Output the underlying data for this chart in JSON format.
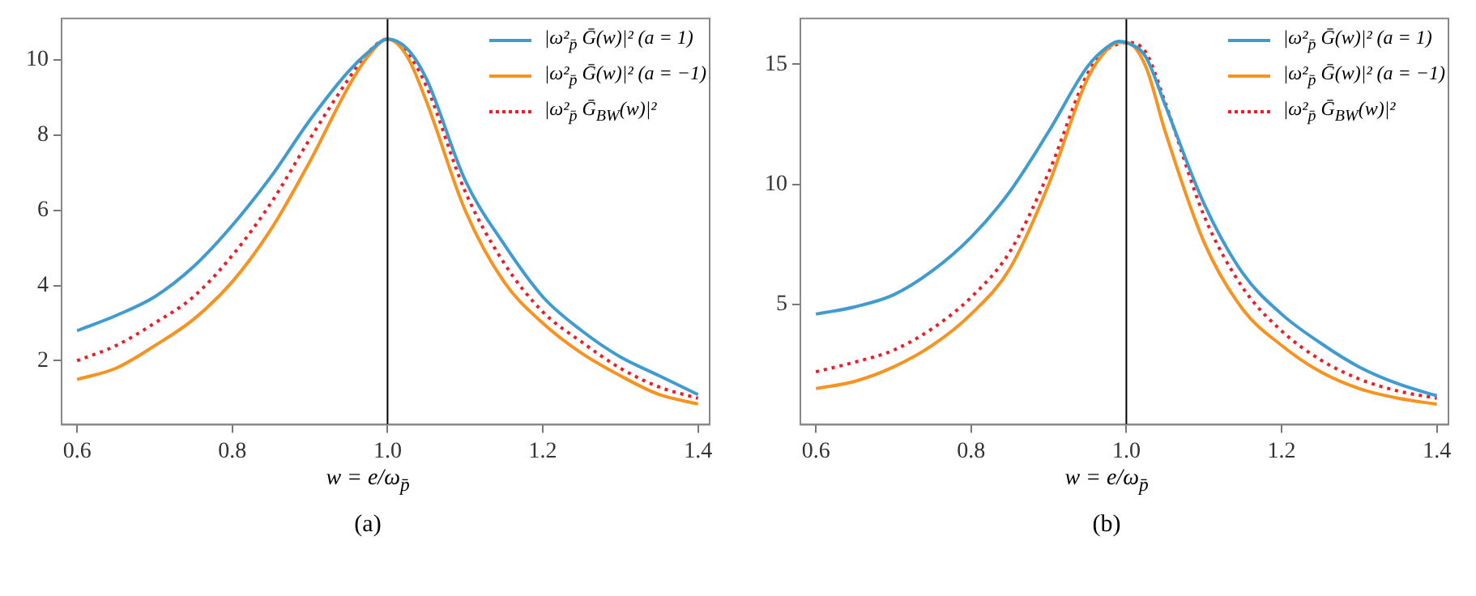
{
  "chart_data": [
    {
      "type": "line",
      "title": "(a)",
      "xlabel": "w = e/ω$_{p̄}$",
      "legend": "top right",
      "grid": false,
      "marker": "none",
      "xlim": [
        0.58,
        1.415
      ],
      "xticks": [
        0.6,
        0.8,
        {
          "value": 1,
          "label": "1.0"
        },
        1.2,
        1.4
      ],
      "ylim": [
        0.3,
        11.1
      ],
      "yticks": [
        2,
        4,
        6,
        8,
        10
      ],
      "ref_lines": [
        {
          "axis": "x",
          "value": 1,
          "color": "#000000"
        }
      ],
      "x": [
        0.6,
        0.65,
        0.7,
        0.75,
        0.8,
        0.85,
        0.9,
        0.95,
        0.975,
        1.0,
        1.025,
        1.05,
        1.1,
        1.15,
        1.2,
        1.25,
        1.3,
        1.35,
        1.4
      ],
      "series": [
        {
          "name": "|ω²$_{p̄}$ Ḡ(w)|²  (a = 1)",
          "color": "#3f9bd0",
          "line_style": "solid",
          "values": [
            2.8,
            3.2,
            3.7,
            4.5,
            5.6,
            6.9,
            8.4,
            9.7,
            10.2,
            10.55,
            10.3,
            9.5,
            6.8,
            5.1,
            3.7,
            2.8,
            2.1,
            1.6,
            1.1
          ]
        },
        {
          "name": "|ω²$_{p̄}$ Ḡ(w)|²  (a = −1)",
          "color": "#f7931e",
          "line_style": "solid",
          "values": [
            1.5,
            1.8,
            2.4,
            3.1,
            4.1,
            5.5,
            7.3,
            9.3,
            10.1,
            10.55,
            10.1,
            8.9,
            6.0,
            4.1,
            3.0,
            2.2,
            1.6,
            1.1,
            0.85
          ]
        },
        {
          "name": "|ω²$_{p̄}$ Ḡ$_{BW}$(w)|²",
          "color": "#ee1c25",
          "line_style": "dotted",
          "values": [
            2.0,
            2.4,
            3.0,
            3.7,
            4.8,
            6.2,
            7.9,
            9.5,
            10.2,
            10.55,
            10.2,
            9.3,
            6.5,
            4.6,
            3.3,
            2.5,
            1.8,
            1.3,
            1.0
          ]
        }
      ]
    },
    {
      "type": "line",
      "title": "(b)",
      "xlabel": "w = e/ω$_{p̄}$",
      "legend": "top right",
      "grid": false,
      "marker": "none",
      "xlim": [
        0.58,
        1.415
      ],
      "xticks": [
        0.6,
        0.8,
        {
          "value": 1,
          "label": "1.0"
        },
        1.2,
        1.4
      ],
      "ylim": [
        0,
        16.9
      ],
      "yticks": [
        5,
        10,
        15
      ],
      "ref_lines": [
        {
          "axis": "x",
          "value": 1,
          "color": "#000000"
        }
      ],
      "x": [
        0.6,
        0.65,
        0.7,
        0.75,
        0.8,
        0.85,
        0.9,
        0.95,
        0.975,
        0.99,
        1.0,
        1.025,
        1.05,
        1.1,
        1.15,
        1.2,
        1.25,
        1.3,
        1.35,
        1.4
      ],
      "series": [
        {
          "name": "|ω²$_{p̄}$ Ḡ(w)|²  (a = 1)",
          "color": "#3f9bd0",
          "line_style": "solid",
          "values": [
            4.6,
            4.9,
            5.4,
            6.4,
            7.8,
            9.7,
            12.2,
            14.9,
            15.7,
            15.95,
            15.9,
            15.3,
            13.3,
            9.2,
            6.3,
            4.6,
            3.4,
            2.4,
            1.7,
            1.2
          ]
        },
        {
          "name": "|ω²$_{p̄}$ Ḡ(w)|²  (a = −1)",
          "color": "#f7931e",
          "line_style": "solid",
          "values": [
            1.5,
            1.8,
            2.4,
            3.3,
            4.6,
            6.5,
            10.0,
            14.4,
            15.6,
            15.9,
            15.9,
            14.9,
            12.2,
            7.6,
            4.8,
            3.3,
            2.2,
            1.5,
            1.1,
            0.85
          ]
        },
        {
          "name": "|ω²$_{p̄}$ Ḡ$_{BW}$(w)|²",
          "color": "#ee1c25",
          "line_style": "dotted",
          "values": [
            2.2,
            2.6,
            3.1,
            4.0,
            5.3,
            7.2,
            10.5,
            14.6,
            15.6,
            15.85,
            15.9,
            15.5,
            13.4,
            8.7,
            5.7,
            3.9,
            2.7,
            1.9,
            1.4,
            1.1
          ]
        }
      ]
    }
  ]
}
